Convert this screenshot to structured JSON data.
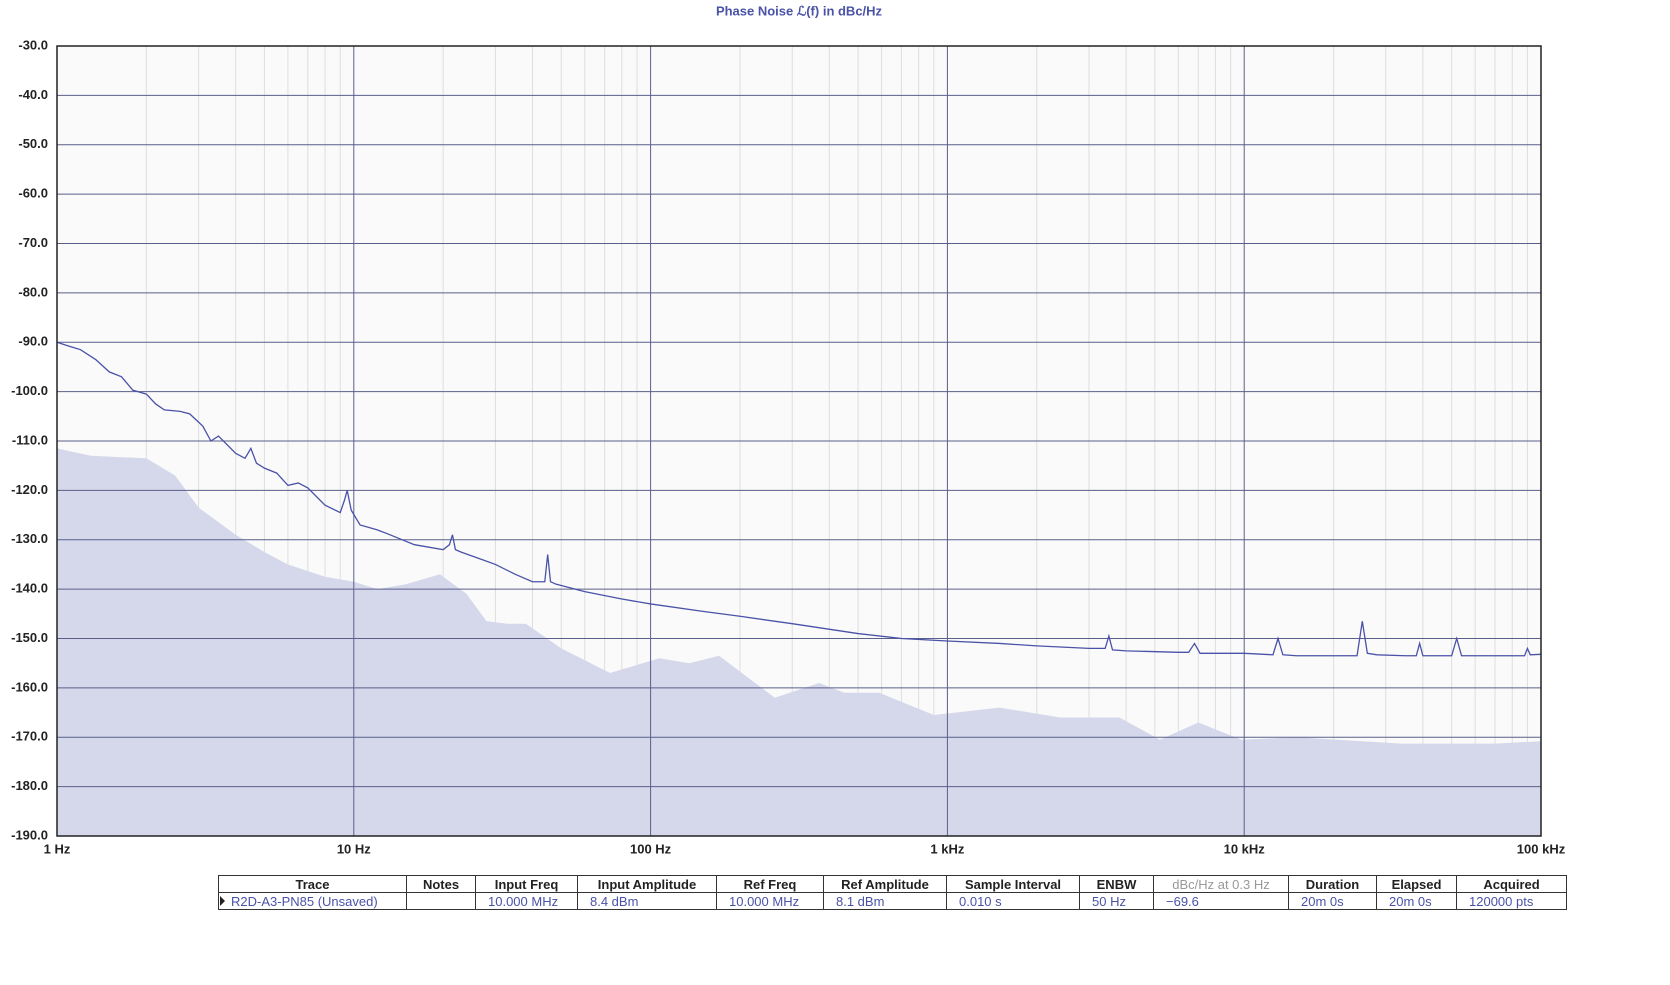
{
  "chart_data": {
    "type": "line",
    "title": "Phase Noise ℒ(f) in dBc/Hz",
    "xscale": "log",
    "xlim": [
      1,
      100000
    ],
    "xticks": [
      {
        "value": 1,
        "label": "1 Hz"
      },
      {
        "value": 10,
        "label": "10 Hz"
      },
      {
        "value": 100,
        "label": "100 Hz"
      },
      {
        "value": 1000,
        "label": "1 kHz"
      },
      {
        "value": 10000,
        "label": "10 kHz"
      },
      {
        "value": 100000,
        "label": "100 kHz"
      }
    ],
    "xminorticks": [
      2,
      3,
      4,
      5,
      6,
      7,
      8,
      9,
      20,
      30,
      40,
      50,
      60,
      70,
      80,
      90,
      200,
      300,
      400,
      500,
      600,
      700,
      800,
      900,
      2000,
      3000,
      4000,
      5000,
      6000,
      7000,
      8000,
      9000,
      20000,
      30000,
      40000,
      50000,
      60000,
      70000,
      80000,
      90000
    ],
    "ylim": [
      -190,
      -30
    ],
    "yticks": [
      {
        "value": -30,
        "label": "-30.0"
      },
      {
        "value": -40,
        "label": "-40.0"
      },
      {
        "value": -50,
        "label": "-50.0"
      },
      {
        "value": -60,
        "label": "-60.0"
      },
      {
        "value": -70,
        "label": "-70.0"
      },
      {
        "value": -80,
        "label": "-80.0"
      },
      {
        "value": -90,
        "label": "-90.0"
      },
      {
        "value": -100,
        "label": "-100.0"
      },
      {
        "value": -110,
        "label": "-110.0"
      },
      {
        "value": -120,
        "label": "-120.0"
      },
      {
        "value": -130,
        "label": "-130.0"
      },
      {
        "value": -140,
        "label": "-140.0"
      },
      {
        "value": -150,
        "label": "-150.0"
      },
      {
        "value": -160,
        "label": "-160.0"
      },
      {
        "value": -170,
        "label": "-170.0"
      },
      {
        "value": -180,
        "label": "-180.0"
      },
      {
        "value": -190,
        "label": "-190.0"
      }
    ],
    "grid": true,
    "series": [
      {
        "color": "#d5d8ea",
        "area": true,
        "x": [
          1,
          1.3,
          2,
          2.5,
          3,
          4,
          5,
          6,
          8,
          10,
          12,
          15,
          19.5,
          24,
          28,
          33,
          38,
          50,
          73,
          107,
          135,
          170,
          262,
          370,
          450,
          590,
          900,
          1500,
          2400,
          3800,
          5200,
          7000,
          9800,
          15000,
          34000,
          70000,
          100000
        ],
        "values": [
          -111.5,
          -113,
          -113.5,
          -117,
          -123.5,
          -129,
          -132.5,
          -135,
          -137.5,
          -138.5,
          -140,
          -139,
          -137,
          -141,
          -146.5,
          -147,
          -147,
          -152,
          -157,
          -154,
          -155,
          -153.5,
          -162,
          -159,
          -161,
          -161,
          -165.5,
          -164,
          -166,
          -166,
          -170.5,
          -167,
          -170.5,
          -170,
          -171.3,
          -171.3,
          -170.8
        ]
      },
      {
        "color": "#4a52a8",
        "x": [
          1,
          1.1,
          1.2,
          1.35,
          1.5,
          1.65,
          1.8,
          2,
          2.15,
          2.3,
          2.6,
          2.8,
          3.1,
          3.3,
          3.5,
          4,
          4.3,
          4.5,
          4.7,
          5,
          5.5,
          6,
          6.5,
          7,
          8,
          9,
          9.3,
          9.5,
          9.8,
          10.5,
          12,
          13,
          16,
          20,
          21,
          21.5,
          22,
          23,
          27,
          30,
          35,
          40,
          44,
          45,
          46,
          48,
          60,
          80,
          100,
          150,
          200,
          300,
          500,
          700,
          1000,
          1500,
          2000,
          3000,
          3400,
          3500,
          3600,
          4000,
          6000,
          6500,
          6800,
          7100,
          8000,
          10000,
          12500,
          13000,
          13500,
          15000,
          20000,
          24000,
          25000,
          26000,
          28000,
          35000,
          38000,
          39000,
          40000,
          45000,
          50000,
          52000,
          54000,
          60000,
          70000,
          88000,
          90000,
          92000,
          100000
        ],
        "values": [
          -90,
          -90.8,
          -91.5,
          -93.5,
          -96,
          -97,
          -99.7,
          -100.5,
          -102.5,
          -103.7,
          -104,
          -104.5,
          -107,
          -110,
          -109,
          -112.5,
          -113.5,
          -111.5,
          -114.5,
          -115.5,
          -116.5,
          -119,
          -118.5,
          -119.5,
          -123,
          -124.5,
          -122,
          -120,
          -124,
          -127,
          -128,
          -128.8,
          -131,
          -132,
          -131,
          -129,
          -132,
          -132.5,
          -134,
          -135,
          -137,
          -138.5,
          -138.5,
          -133,
          -138.5,
          -139,
          -140.5,
          -142,
          -143,
          -144.5,
          -145.5,
          -147,
          -149,
          -150,
          -150.5,
          -151,
          -151.5,
          -152,
          -152,
          -149.5,
          -152.3,
          -152.5,
          -152.8,
          -152.8,
          -151,
          -153,
          -153,
          -153,
          -153.3,
          -150,
          -153.3,
          -153.5,
          -153.5,
          -153.5,
          -146.5,
          -153,
          -153.3,
          -153.5,
          -153.5,
          -151,
          -153.5,
          -153.5,
          -153.5,
          -150,
          -153.5,
          -153.5,
          -153.5,
          -153.5,
          -152,
          -153.3,
          -153.2
        ]
      }
    ]
  },
  "table": {
    "header": [
      "Trace",
      "Notes",
      "Input Freq",
      "Input Amplitude",
      "Ref Freq",
      "Ref Amplitude",
      "Sample Interval",
      "ENBW",
      "dBc/Hz at 0.3 Hz",
      "Duration",
      "Elapsed",
      "Acquired"
    ],
    "rows": [
      [
        "R2D-A3-PN85 (Unsaved)",
        null,
        "10.000 MHz",
        "8.4 dBm",
        "10.000 MHz",
        "8.1 dBm",
        "0.010 s",
        "50 Hz",
        "−69.6",
        "20m 0s",
        "20m 0s",
        "120000 pts"
      ]
    ]
  }
}
